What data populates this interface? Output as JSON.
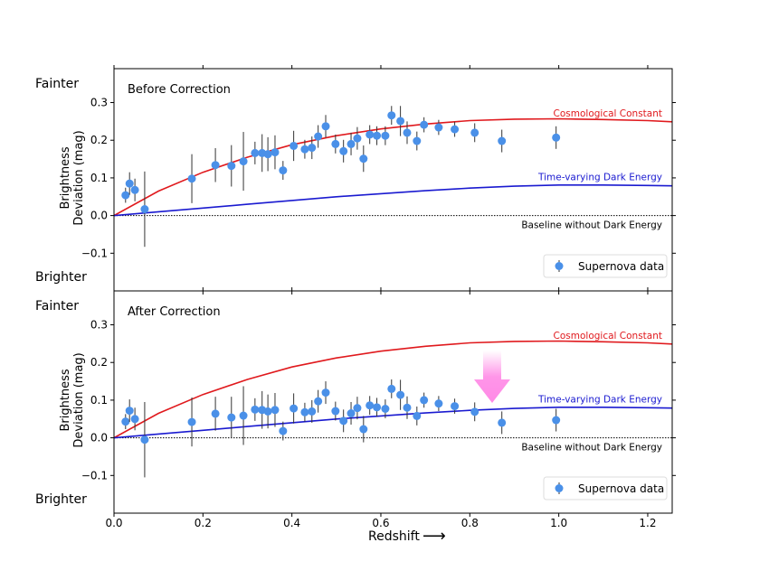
{
  "chart_data": {
    "type": "scatter",
    "xlabel": "Redshift",
    "xlabel_arrow": "⟶",
    "ylabel_line1": "Brightness",
    "ylabel_line2": "Deviation (mag)",
    "xlim": [
      0,
      1.255
    ],
    "ylim": [
      -0.2,
      0.39
    ],
    "x_ticks": [
      "0.0",
      "0.2",
      "0.4",
      "0.6",
      "0.8",
      "1.0",
      "1.2"
    ],
    "x_tick_values": [
      0,
      0.2,
      0.4,
      0.6,
      0.8,
      1.0,
      1.2
    ],
    "y_ticks": [
      "0.3",
      "0.2",
      "0.1",
      "0.0",
      "−0.1"
    ],
    "y_tick_values": [
      0.3,
      0.2,
      0.1,
      0.0,
      -0.1
    ],
    "side_labels": {
      "top": "Fainter",
      "bottom": "Brighter"
    },
    "legend": {
      "label": "Supernova data",
      "position": "lower-right"
    },
    "colors": {
      "data": "#4a90e8",
      "errorbar": "#333333",
      "cosmological_constant": "#e0191d",
      "dark_energy": "#1a1ad0",
      "baseline": "#000000",
      "arrow": "#ff8ae6"
    },
    "curves": {
      "cosmological_constant": {
        "label": "Cosmological Constant",
        "x": [
          0,
          0.1,
          0.2,
          0.3,
          0.4,
          0.5,
          0.6,
          0.7,
          0.8,
          0.9,
          1.0,
          1.1,
          1.2,
          1.255
        ],
        "y": [
          0,
          0.065,
          0.115,
          0.155,
          0.188,
          0.212,
          0.23,
          0.243,
          0.252,
          0.256,
          0.257,
          0.255,
          0.252,
          0.249
        ]
      },
      "dark_energy": {
        "label": "Time-varying Dark Energy",
        "x": [
          0,
          0.1,
          0.2,
          0.3,
          0.4,
          0.5,
          0.6,
          0.7,
          0.8,
          0.9,
          1.0,
          1.1,
          1.2,
          1.255
        ],
        "y": [
          0,
          0.01,
          0.02,
          0.03,
          0.04,
          0.05,
          0.058,
          0.066,
          0.073,
          0.078,
          0.081,
          0.081,
          0.08,
          0.079
        ]
      },
      "baseline": {
        "label": "Baseline without Dark Energy",
        "y": 0
      }
    },
    "x": [
      0.026,
      0.035,
      0.047,
      0.069,
      0.175,
      0.228,
      0.264,
      0.291,
      0.317,
      0.333,
      0.346,
      0.362,
      0.38,
      0.404,
      0.429,
      0.445,
      0.459,
      0.476,
      0.498,
      0.516,
      0.533,
      0.547,
      0.561,
      0.575,
      0.591,
      0.61,
      0.624,
      0.644,
      0.659,
      0.681,
      0.697,
      0.73,
      0.766,
      0.811,
      0.872,
      0.994
    ],
    "errors": [
      0.02,
      0.03,
      0.03,
      0.1,
      0.065,
      0.045,
      0.055,
      0.078,
      0.03,
      0.05,
      0.045,
      0.045,
      0.025,
      0.04,
      0.025,
      0.03,
      0.03,
      0.03,
      0.025,
      0.03,
      0.03,
      0.03,
      0.035,
      0.025,
      0.025,
      0.025,
      0.025,
      0.04,
      0.03,
      0.025,
      0.02,
      0.02,
      0.02,
      0.025,
      0.03,
      0.03
    ],
    "panels": [
      {
        "title": "Before Correction",
        "y": [
          0.054,
          0.085,
          0.068,
          0.017,
          0.098,
          0.134,
          0.132,
          0.144,
          0.166,
          0.166,
          0.163,
          0.168,
          0.12,
          0.185,
          0.176,
          0.18,
          0.21,
          0.237,
          0.19,
          0.171,
          0.19,
          0.205,
          0.151,
          0.215,
          0.212,
          0.212,
          0.266,
          0.251,
          0.22,
          0.198,
          0.241,
          0.234,
          0.229,
          0.22,
          0.198,
          0.207
        ],
        "arrow": false
      },
      {
        "title": "After Correction",
        "y": [
          0.043,
          0.072,
          0.05,
          -0.005,
          0.042,
          0.064,
          0.054,
          0.059,
          0.075,
          0.074,
          0.07,
          0.074,
          0.018,
          0.078,
          0.068,
          0.07,
          0.097,
          0.12,
          0.071,
          0.045,
          0.065,
          0.079,
          0.023,
          0.086,
          0.081,
          0.077,
          0.13,
          0.114,
          0.08,
          0.058,
          0.1,
          0.091,
          0.084,
          0.069,
          0.04,
          0.047
        ],
        "arrow": true
      }
    ]
  }
}
